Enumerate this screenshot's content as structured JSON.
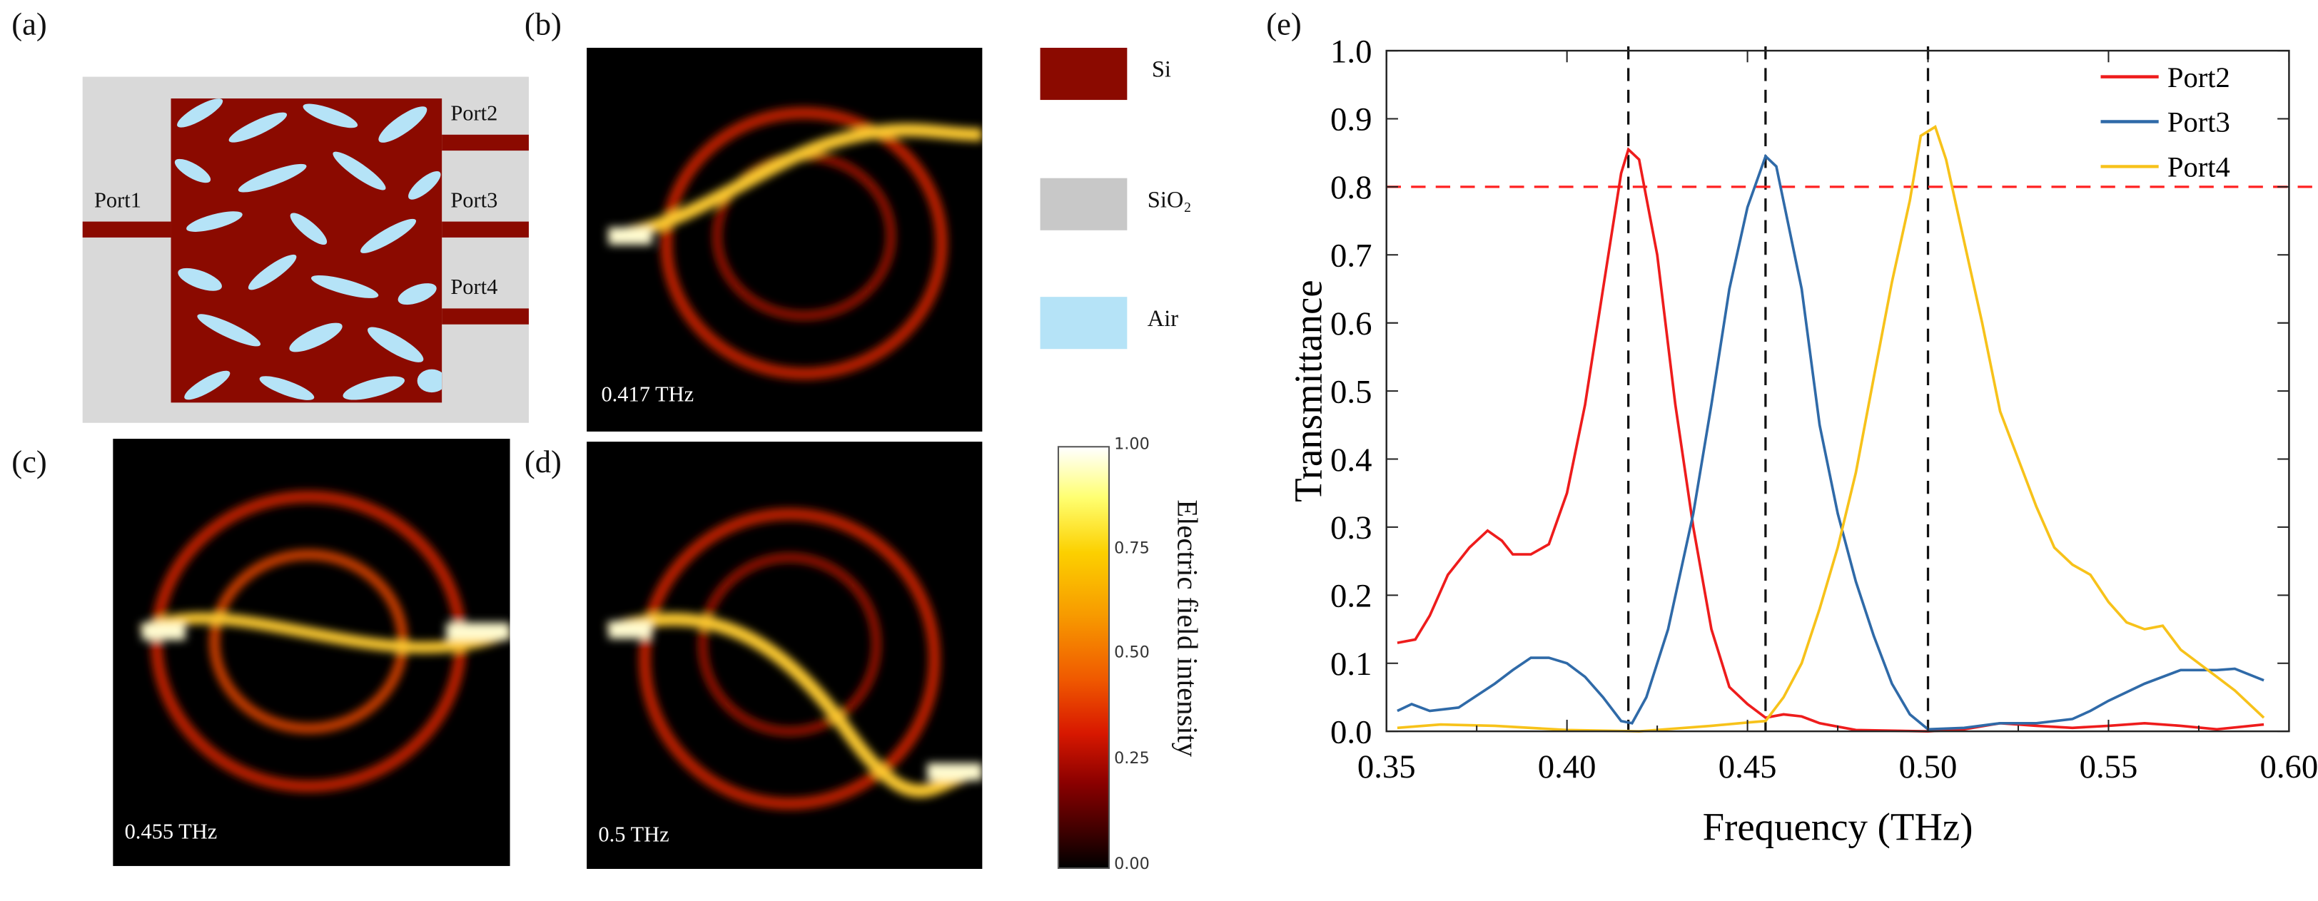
{
  "panels": {
    "a": {
      "label": "(a)",
      "ports": [
        "Port1",
        "Port2",
        "Port3",
        "Port4"
      ]
    },
    "b": {
      "label": "(b)",
      "freq": "0.417 THz"
    },
    "c": {
      "label": "(c)",
      "freq": "0.455 THz"
    },
    "d": {
      "label": "(d)",
      "freq": "0.5 THz"
    },
    "e": {
      "label": "(e)"
    }
  },
  "material_legend": [
    {
      "name": "Si",
      "color": "#8b0a00"
    },
    {
      "name": "SiO₂",
      "color": "#c8c8c8"
    },
    {
      "name": "Air",
      "color": "#b5e3f7"
    }
  ],
  "colorbar": {
    "title": "Electric field intensity",
    "ticks": [
      "1.00",
      "0.75",
      "0.50",
      "0.25",
      "0.00"
    ]
  },
  "chart_data": {
    "type": "line",
    "title": "",
    "xlabel": "Frequency (THz)",
    "ylabel": "Transmittance",
    "xlim": [
      0.35,
      0.6
    ],
    "ylim": [
      0.0,
      1.0
    ],
    "xticks": [
      "0.35",
      "0.40",
      "0.45",
      "0.50",
      "0.55",
      "0.60"
    ],
    "yticks": [
      "0.0",
      "0.1",
      "0.2",
      "0.3",
      "0.4",
      "0.5",
      "0.6",
      "0.7",
      "0.8",
      "0.9",
      "1.0"
    ],
    "legend_position": "top-right",
    "threshold": {
      "y": 0.8,
      "color": "#ff2020"
    },
    "vlines": [
      0.417,
      0.455,
      0.5
    ],
    "series": [
      {
        "name": "Port2",
        "color": "#ee1c1c",
        "x": [
          0.353,
          0.358,
          0.362,
          0.367,
          0.373,
          0.378,
          0.382,
          0.385,
          0.39,
          0.395,
          0.4,
          0.405,
          0.41,
          0.415,
          0.417,
          0.42,
          0.425,
          0.43,
          0.435,
          0.44,
          0.445,
          0.45,
          0.455,
          0.46,
          0.465,
          0.47,
          0.48,
          0.5,
          0.51,
          0.52,
          0.53,
          0.54,
          0.55,
          0.56,
          0.57,
          0.58,
          0.593
        ],
        "y": [
          0.13,
          0.135,
          0.17,
          0.23,
          0.27,
          0.295,
          0.28,
          0.26,
          0.26,
          0.275,
          0.35,
          0.48,
          0.65,
          0.82,
          0.855,
          0.84,
          0.7,
          0.48,
          0.3,
          0.15,
          0.065,
          0.04,
          0.02,
          0.025,
          0.022,
          0.012,
          0.002,
          0,
          0.003,
          0.012,
          0.008,
          0.005,
          0.008,
          0.012,
          0.008,
          0.003,
          0.01
        ]
      },
      {
        "name": "Port3",
        "color": "#2f6aa8",
        "x": [
          0.353,
          0.357,
          0.362,
          0.37,
          0.38,
          0.385,
          0.39,
          0.395,
          0.4,
          0.405,
          0.41,
          0.415,
          0.418,
          0.422,
          0.428,
          0.435,
          0.44,
          0.445,
          0.45,
          0.455,
          0.458,
          0.465,
          0.47,
          0.475,
          0.48,
          0.485,
          0.49,
          0.495,
          0.5,
          0.51,
          0.52,
          0.53,
          0.54,
          0.545,
          0.55,
          0.56,
          0.57,
          0.58,
          0.585,
          0.593
        ],
        "y": [
          0.03,
          0.04,
          0.03,
          0.035,
          0.07,
          0.09,
          0.108,
          0.108,
          0.1,
          0.08,
          0.05,
          0.015,
          0.012,
          0.05,
          0.15,
          0.32,
          0.48,
          0.65,
          0.77,
          0.845,
          0.83,
          0.65,
          0.45,
          0.32,
          0.22,
          0.14,
          0.07,
          0.025,
          0.003,
          0.005,
          0.012,
          0.012,
          0.018,
          0.03,
          0.045,
          0.07,
          0.09,
          0.09,
          0.092,
          0.075
        ]
      },
      {
        "name": "Port4",
        "color": "#f7c21a",
        "x": [
          0.353,
          0.365,
          0.38,
          0.4,
          0.42,
          0.44,
          0.45,
          0.455,
          0.46,
          0.465,
          0.47,
          0.475,
          0.48,
          0.485,
          0.49,
          0.495,
          0.498,
          0.502,
          0.505,
          0.51,
          0.515,
          0.52,
          0.525,
          0.53,
          0.535,
          0.54,
          0.545,
          0.55,
          0.555,
          0.56,
          0.565,
          0.57,
          0.58,
          0.585,
          0.593
        ],
        "y": [
          0.005,
          0.01,
          0.008,
          0.002,
          0,
          0.008,
          0.013,
          0.015,
          0.05,
          0.1,
          0.18,
          0.27,
          0.38,
          0.52,
          0.66,
          0.78,
          0.875,
          0.888,
          0.84,
          0.72,
          0.6,
          0.47,
          0.4,
          0.33,
          0.27,
          0.245,
          0.23,
          0.19,
          0.16,
          0.15,
          0.155,
          0.12,
          0.08,
          0.06,
          0.02
        ]
      }
    ]
  }
}
